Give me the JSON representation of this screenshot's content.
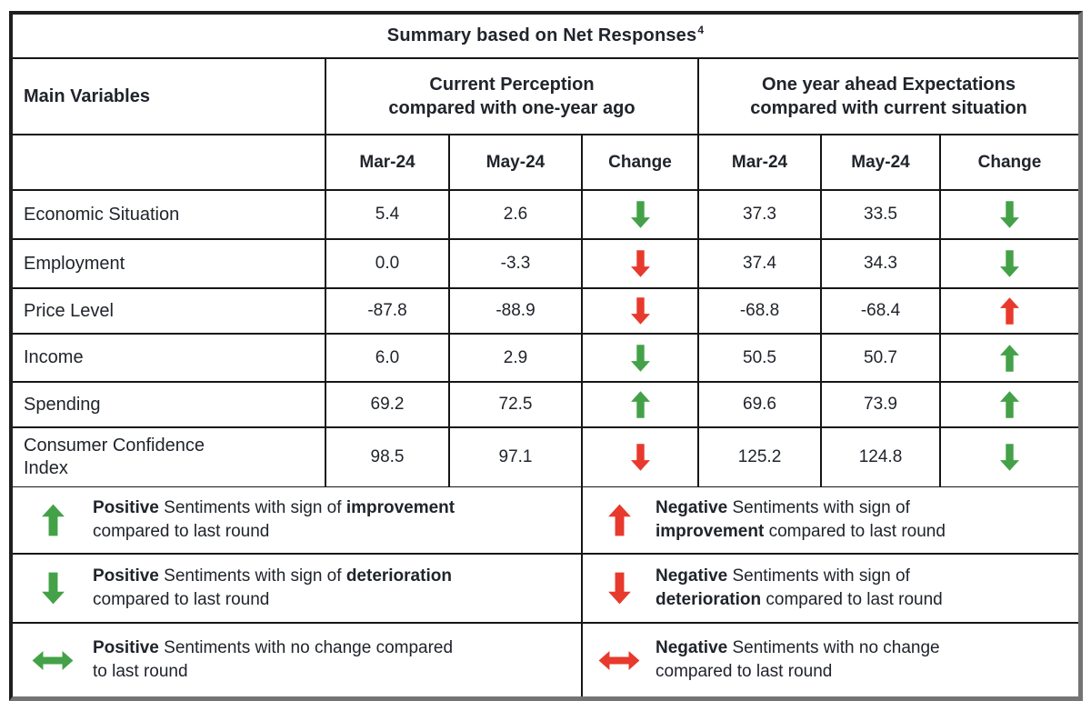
{
  "colors": {
    "green": "#44a148",
    "red": "#e8392d"
  },
  "title": {
    "text": "Summary based on Net Responses",
    "superscript": "4"
  },
  "header": {
    "main_variables": "Main Variables",
    "group1_line1": "Current Perception",
    "group1_line2": "compared with one-year ago",
    "group2_line1": "One year ahead Expectations",
    "group2_line2": "compared with current situation",
    "sub": [
      "Mar-24",
      "May-24",
      "Change",
      "Mar-24",
      "May-24",
      "Change"
    ]
  },
  "rows": [
    {
      "label": "Economic Situation",
      "cp_mar": "5.4",
      "cp_may": "2.6",
      "cp_change": "down:green",
      "ex_mar": "37.3",
      "ex_may": "33.5",
      "ex_change": "down:green"
    },
    {
      "label": "Employment",
      "cp_mar": "0.0",
      "cp_may": "-3.3",
      "cp_change": "down:red",
      "ex_mar": "37.4",
      "ex_may": "34.3",
      "ex_change": "down:green"
    },
    {
      "label": "Price Level",
      "cp_mar": "-87.8",
      "cp_may": "-88.9",
      "cp_change": "down:red",
      "ex_mar": "-68.8",
      "ex_may": "-68.4",
      "ex_change": "up:red"
    },
    {
      "label": "Income",
      "cp_mar": "6.0",
      "cp_may": "2.9",
      "cp_change": "down:green",
      "ex_mar": "50.5",
      "ex_may": "50.7",
      "ex_change": "up:green"
    },
    {
      "label": "Spending",
      "cp_mar": "69.2",
      "cp_may": "72.5",
      "cp_change": "up:green",
      "ex_mar": "69.6",
      "ex_may": "73.9",
      "ex_change": "up:green"
    },
    {
      "label": "Consumer Confidence\nIndex",
      "cp_mar": "98.5",
      "cp_may": "97.1",
      "cp_change": "down:red",
      "ex_mar": "125.2",
      "ex_may": "124.8",
      "ex_change": "down:green"
    }
  ],
  "legend": {
    "left": [
      {
        "arrow": "up:green",
        "lines": [
          [
            {
              "t": "Positive",
              "b": true
            },
            {
              "t": " Sentiments with sign of ",
              "b": false
            },
            {
              "t": "improvement",
              "b": true
            }
          ],
          [
            {
              "t": "compared to last round",
              "b": false
            }
          ]
        ]
      },
      {
        "arrow": "down:green",
        "lines": [
          [
            {
              "t": "Positive",
              "b": true
            },
            {
              "t": " Sentiments with sign of ",
              "b": false
            },
            {
              "t": "deterioration",
              "b": true
            }
          ],
          [
            {
              "t": "compared to last round",
              "b": false
            }
          ]
        ]
      },
      {
        "arrow": "lr:green",
        "lines": [
          [
            {
              "t": "Positive",
              "b": true
            },
            {
              "t": " Sentiments with no change compared",
              "b": false
            }
          ],
          [
            {
              "t": "to last round",
              "b": false
            }
          ]
        ]
      }
    ],
    "right": [
      {
        "arrow": "up:red",
        "lines": [
          [
            {
              "t": "Negative",
              "b": true
            },
            {
              "t": " Sentiments with sign of",
              "b": false
            }
          ],
          [
            {
              "t": "improvement",
              "b": true
            },
            {
              "t": " compared to last round",
              "b": false
            }
          ]
        ]
      },
      {
        "arrow": "down:red",
        "lines": [
          [
            {
              "t": "Negative",
              "b": true
            },
            {
              "t": " Sentiments with sign of",
              "b": false
            }
          ],
          [
            {
              "t": "deterioration",
              "b": true
            },
            {
              "t": " compared to last round",
              "b": false
            }
          ]
        ]
      },
      {
        "arrow": "lr:red",
        "lines": [
          [
            {
              "t": "Negative",
              "b": true
            },
            {
              "t": " Sentiments with no change",
              "b": false
            }
          ],
          [
            {
              "t": "compared to last round",
              "b": false
            }
          ]
        ]
      }
    ]
  }
}
